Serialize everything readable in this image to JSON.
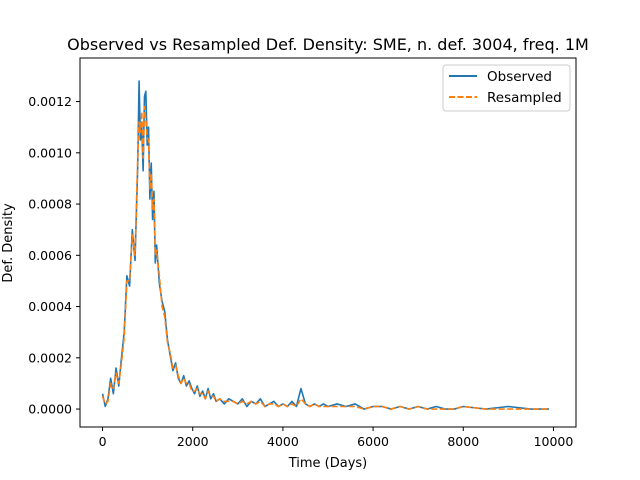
{
  "chart_data": {
    "type": "line",
    "title": "Observed vs Resampled Def. Density: SME, n. def. 3004, freq. 1M",
    "xlabel": "Time (Days)",
    "ylabel": "Def. Density",
    "xlim": [
      -500,
      10500
    ],
    "ylim": [
      -7e-05,
      0.00137
    ],
    "x_ticks": [
      0,
      2000,
      4000,
      6000,
      8000,
      10000
    ],
    "x_tick_labels": [
      "0",
      "2000",
      "4000",
      "6000",
      "8000",
      "10000"
    ],
    "y_ticks": [
      0,
      0.0002,
      0.0004,
      0.0006,
      0.0008,
      0.001,
      0.0012
    ],
    "y_tick_labels": [
      "0.0000",
      "0.0002",
      "0.0004",
      "0.0006",
      "0.0008",
      "0.0010",
      "0.0012"
    ],
    "grid": false,
    "legend_position": "top-right",
    "series": [
      {
        "name": "Observed",
        "color": "#1f77b4",
        "style": "solid",
        "x": [
          0,
          60,
          120,
          180,
          240,
          300,
          360,
          420,
          480,
          540,
          600,
          660,
          720,
          780,
          810,
          840,
          870,
          900,
          930,
          960,
          990,
          1020,
          1050,
          1080,
          1110,
          1140,
          1170,
          1200,
          1260,
          1320,
          1380,
          1440,
          1500,
          1560,
          1620,
          1680,
          1740,
          1800,
          1860,
          1920,
          1980,
          2040,
          2100,
          2160,
          2220,
          2280,
          2340,
          2400,
          2460,
          2520,
          2600,
          2700,
          2800,
          2900,
          3000,
          3100,
          3200,
          3300,
          3400,
          3500,
          3600,
          3700,
          3800,
          3900,
          4000,
          4100,
          4200,
          4300,
          4400,
          4500,
          4600,
          4700,
          4800,
          4900,
          5000,
          5200,
          5400,
          5600,
          5800,
          6000,
          6200,
          6400,
          6600,
          6800,
          7000,
          7200,
          7400,
          7600,
          7800,
          8000,
          8500,
          9000,
          9500,
          9900
        ],
        "y": [
          6e-05,
          1e-05,
          4e-05,
          0.00012,
          6e-05,
          0.00016,
          9e-05,
          0.0002,
          0.0003,
          0.00052,
          0.00048,
          0.0007,
          0.00058,
          0.00095,
          0.00128,
          0.00105,
          0.0011,
          0.00093,
          0.00122,
          0.00124,
          0.00103,
          0.0011,
          0.00082,
          0.00096,
          0.00074,
          0.00085,
          0.00057,
          0.00064,
          0.00049,
          0.00042,
          0.00038,
          0.00027,
          0.00021,
          0.00015,
          0.00018,
          0.00012,
          0.0001,
          0.00013,
          9e-05,
          0.00011,
          8e-05,
          6e-05,
          9e-05,
          5e-05,
          7e-05,
          4e-05,
          8e-05,
          4e-05,
          6e-05,
          3e-05,
          4e-05,
          2e-05,
          4e-05,
          3e-05,
          2e-05,
          4e-05,
          1e-05,
          3e-05,
          2e-05,
          4e-05,
          1e-05,
          2e-05,
          3e-05,
          1e-05,
          2e-05,
          1e-05,
          3e-05,
          1e-05,
          8e-05,
          2e-05,
          1e-05,
          2e-05,
          1e-05,
          2e-05,
          1e-05,
          2e-05,
          1e-05,
          2e-05,
          0.0,
          1e-05,
          1e-05,
          0.0,
          1e-05,
          0.0,
          1e-05,
          0.0,
          1e-05,
          0.0,
          0.0,
          1e-05,
          0.0,
          1e-05,
          0.0,
          0.0
        ]
      },
      {
        "name": "Resampled",
        "color": "#ff7f0e",
        "style": "dashed",
        "x": [
          0,
          60,
          120,
          180,
          240,
          300,
          360,
          420,
          480,
          540,
          600,
          660,
          720,
          780,
          810,
          840,
          870,
          900,
          930,
          960,
          990,
          1020,
          1050,
          1080,
          1110,
          1140,
          1170,
          1200,
          1260,
          1320,
          1380,
          1440,
          1500,
          1560,
          1620,
          1680,
          1740,
          1800,
          1860,
          1920,
          1980,
          2040,
          2100,
          2160,
          2220,
          2280,
          2340,
          2400,
          2460,
          2520,
          2600,
          2700,
          2800,
          2900,
          3000,
          3100,
          3200,
          3300,
          3400,
          3500,
          3600,
          3700,
          3800,
          3900,
          4000,
          4100,
          4200,
          4300,
          4400,
          4500,
          4600,
          4700,
          4800,
          4900,
          5000,
          5200,
          5400,
          5600,
          5800,
          6000,
          6200,
          6400,
          6600,
          6800,
          7000,
          7200,
          7400,
          7600,
          7800,
          8000,
          8500,
          9000,
          9500,
          9900
        ],
        "y": [
          5e-05,
          2e-05,
          3e-05,
          0.0001,
          8e-05,
          0.00014,
          0.0001,
          0.00018,
          0.00028,
          0.0005,
          0.0005,
          0.00068,
          0.0006,
          0.00098,
          0.00112,
          0.00108,
          0.00116,
          0.00098,
          0.00118,
          0.00113,
          0.00106,
          0.00105,
          0.00086,
          0.00092,
          0.00078,
          0.00082,
          0.0006,
          0.00062,
          0.00052,
          0.0004,
          0.00036,
          0.00026,
          0.00022,
          0.00016,
          0.00017,
          0.00013,
          0.0001,
          0.00012,
          0.0001,
          0.0001,
          7e-05,
          7e-05,
          8e-05,
          6e-05,
          6e-05,
          4e-05,
          7e-05,
          5e-05,
          5e-05,
          3e-05,
          4e-05,
          3e-05,
          3e-05,
          3e-05,
          2e-05,
          3e-05,
          2e-05,
          3e-05,
          2e-05,
          3e-05,
          1e-05,
          2e-05,
          2e-05,
          1e-05,
          2e-05,
          1e-05,
          2e-05,
          1e-05,
          4e-05,
          2e-05,
          1e-05,
          2e-05,
          1e-05,
          1e-05,
          1e-05,
          1e-05,
          1e-05,
          1e-05,
          0.0,
          1e-05,
          1e-05,
          0.0,
          1e-05,
          0.0,
          1e-05,
          0.0,
          0.0,
          0.0,
          0.0,
          1e-05,
          0.0,
          0.0,
          0.0,
          0.0
        ]
      }
    ]
  }
}
